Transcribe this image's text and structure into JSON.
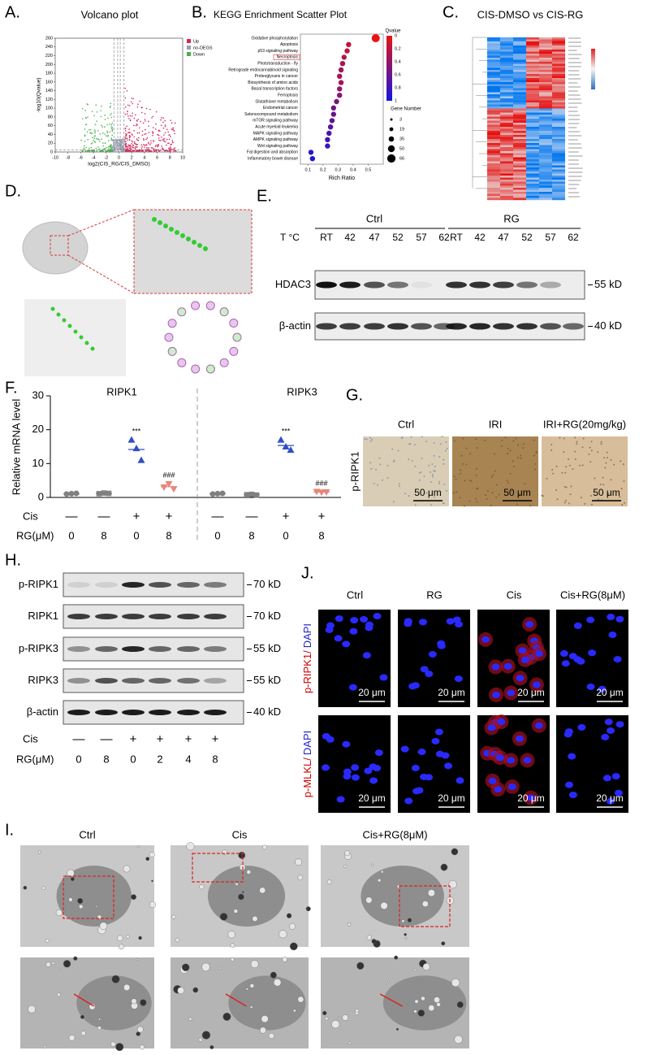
{
  "A": {
    "label": "A.",
    "title": "Volcano plot",
    "x_label": "log2(CIS_RG/CIS_DMSO)",
    "y_label": "-log10(Qvalue)",
    "xlim": [
      -10,
      10
    ],
    "ylim": [
      0,
      260
    ],
    "xticks": [
      -10,
      -8,
      -6,
      -4,
      -2,
      0,
      2,
      4,
      6,
      8,
      10
    ],
    "yticks": [
      0,
      20,
      40,
      60,
      80,
      100,
      120,
      140,
      160,
      180,
      200,
      220,
      240,
      260
    ],
    "legend": [
      {
        "name": "Up",
        "color": "#d6275b"
      },
      {
        "name": "no-DEGS",
        "color": "#9aa0b0"
      },
      {
        "name": "Down",
        "color": "#4caf50"
      }
    ]
  },
  "B": {
    "label": "B.",
    "title": "KEGG Enrichment Scatter Plot",
    "x_label": "Rich Ratio",
    "xlim": [
      0.05,
      0.6
    ],
    "xticks": [
      0.1,
      0.2,
      0.3,
      0.4,
      0.5
    ],
    "pathways": [
      "Oxidative phosphorylation",
      "Apoptosis",
      "p53 signaling pathway",
      "Necroptosis",
      "Phototransduction - fly",
      "Retrograde endocannabinoid signaling",
      "Proteoglycans in cancer",
      "Biosynthesis of amino acids",
      "Basal transcription factors",
      "Ferroptosis",
      "Glutathione metabolism",
      "Endometrial cancer",
      "Selenocompound metabolism",
      "mTOR signaling pathway",
      "Acute myeloid leukemia",
      "MAPK signaling pathway",
      "AMPK signaling pathway",
      "Wnt signaling pathway",
      "Fat digestion and absorption",
      "Inflammatory bowel disease"
    ],
    "rich_ratio": [
      0.55,
      0.37,
      0.36,
      0.34,
      0.33,
      0.32,
      0.31,
      0.32,
      0.31,
      0.31,
      0.29,
      0.27,
      0.27,
      0.26,
      0.25,
      0.24,
      0.23,
      0.23,
      0.12,
      0.13
    ],
    "qvalue": [
      0,
      0.15,
      0.2,
      0.25,
      0.3,
      0.35,
      0.3,
      0.3,
      0.4,
      0.45,
      0.5,
      0.55,
      0.6,
      0.65,
      0.7,
      0.75,
      0.8,
      0.85,
      0.9,
      0.95
    ],
    "qvalue_title": "Qvalue",
    "qvalue_ticks": [
      0,
      0.2,
      0.4,
      0.6,
      0.8,
      1
    ],
    "size_title": "Gene Number",
    "size_ticks": [
      3,
      19,
      35,
      50,
      66
    ]
  },
  "C": {
    "label": "C.",
    "title": "CIS-DMSO vs CIS-RG"
  },
  "D": {
    "label": "D."
  },
  "E": {
    "label": "E.",
    "temp_label": "T °C",
    "groups": [
      "Ctrl",
      "RG"
    ],
    "temps": [
      "RT",
      "42",
      "47",
      "52",
      "57",
      "62"
    ],
    "rows": [
      "HDAC3",
      "β-actin"
    ],
    "sizes": [
      "55 kD",
      "40 kD"
    ]
  },
  "F": {
    "label": "F.",
    "y_label": "Relative mRNA level",
    "ylim": [
      0,
      30
    ],
    "yticks": [
      0,
      10,
      20,
      30
    ],
    "cis_label": "Cis",
    "rg_label": "RG(μM)",
    "cis": [
      "—",
      "—",
      "+",
      "+"
    ],
    "rg": [
      "0",
      "8",
      "0",
      "8"
    ],
    "panels": [
      {
        "title": "RIPK1",
        "sig": [
          "***",
          "###"
        ],
        "groups": [
          {
            "color": "#808080",
            "values": [
              1.0,
              1.1,
              1.2
            ]
          },
          {
            "color": "#808080",
            "values": [
              1.1,
              1.3,
              1.2
            ]
          },
          {
            "color": "#2f4fc4",
            "values": [
              17,
              14.5,
              11
            ]
          },
          {
            "color": "#e8857a",
            "values": [
              3,
              4,
              2.5
            ]
          }
        ]
      },
      {
        "title": "RIPK3",
        "sig": [
          "***",
          "###"
        ],
        "groups": [
          {
            "color": "#808080",
            "values": [
              1.0,
              1.1,
              1.2
            ]
          },
          {
            "color": "#808080",
            "values": [
              0.8,
              0.9,
              0.7
            ]
          },
          {
            "color": "#2f4fc4",
            "values": [
              17,
              15,
              14
            ]
          },
          {
            "color": "#e8857a",
            "values": [
              1.7,
              1.5,
              1.6
            ]
          }
        ]
      }
    ]
  },
  "G": {
    "label": "G.",
    "row_label": "p-RIPK1",
    "columns": [
      "Ctrl",
      "IRI",
      "IRI+RG(20mg/kg)"
    ],
    "scale": "50 μm"
  },
  "H": {
    "label": "H.",
    "rows": [
      "p-RIPK1",
      "RIPK1",
      "p-RIPK3",
      "RIPK3",
      "β-actin"
    ],
    "sizes": [
      "70 kD",
      "70 kD",
      "55 kD",
      "55 kD",
      "40 kD"
    ],
    "cis_label": "Cis",
    "rg_label": "RG(μM)",
    "cis": [
      "—",
      "—",
      "+",
      "+",
      "+",
      "+"
    ],
    "rg": [
      "0",
      "8",
      "0",
      "2",
      "4",
      "8"
    ]
  },
  "J": {
    "label": "J.",
    "columns": [
      "Ctrl",
      "RG",
      "Cis",
      "Cis+RG(8μM)"
    ],
    "rows": [
      {
        "stain": "p-RIPK1/",
        "counter": "DAPI"
      },
      {
        "stain": "p-MLKL/",
        "counter": "DAPI"
      }
    ],
    "scale": "20 μm"
  },
  "I": {
    "label": "I.",
    "columns": [
      "Ctrl",
      "Cis",
      "Cis+RG(8μM)"
    ]
  }
}
